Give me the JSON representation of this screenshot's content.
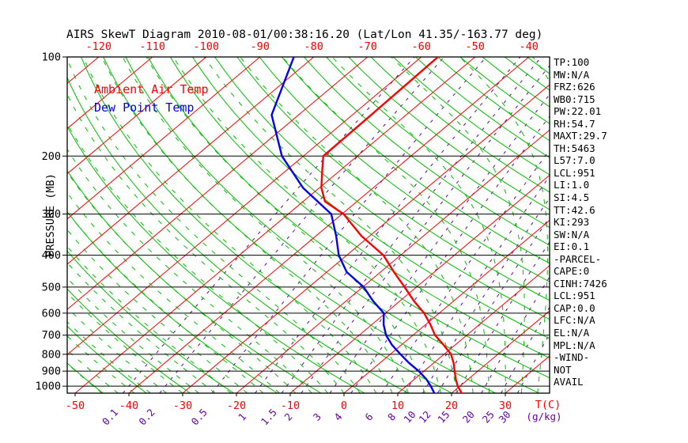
{
  "title": "AIRS SkewT Diagram 2010-08-01/00:38:16.20 (Lat/Lon 41.35/-163.77 deg)",
  "legend": {
    "temperature": "Ambient Air Temp",
    "dewpoint": "Dew Point Temp"
  },
  "stats_panel": {
    "lines": [
      "TP:100",
      "MW:N/A",
      "FRZ:626",
      "WB0:715",
      "PW:22.01",
      "RH:54.7",
      "MAXT:29.7",
      "TH:5463",
      "L57:7.0",
      "LCL:951",
      "LI:1.0",
      "SI:4.5",
      "TT:42.6",
      "KI:293",
      "SW:N/A",
      "EI:0.1",
      "-PARCEL-",
      "CAPE:0",
      "CINH:7426",
      "LCL:951",
      "CAP:0.0",
      "LFC:N/A",
      "EL:N/A",
      "MPL:N/A",
      "-WIND-",
      "NOT",
      "AVAIL"
    ]
  },
  "colors": {
    "temperature": "#ff0000",
    "dewpoint": "#0000ee",
    "isotherm": "#ff0000",
    "adiabat": "#00c000",
    "mixing_ratio": "#6600aa",
    "axis": "#000000",
    "background": "#ffffff"
  },
  "chart_data": {
    "type": "line",
    "variant": "skew-t-log-p",
    "title": "AIRS SkewT Diagram 2010-08-01/00:38:16.20 (Lat/Lon 41.35/-163.77 deg)",
    "x_axis": {
      "label": "T(C)",
      "unit": "deg C",
      "skewed": true,
      "bottom_tick_labels": [
        -50,
        -40,
        -30,
        -20,
        -10,
        0,
        10,
        20,
        30
      ],
      "top_tick_labels": [
        -120,
        -110,
        -100,
        -90,
        -80,
        -70,
        -60,
        -50,
        -40
      ]
    },
    "y_axis": {
      "label": "PRESSURE (MB)",
      "scale": "log",
      "tick_labels": [
        100,
        200,
        300,
        400,
        500,
        600,
        700,
        800,
        900,
        1000
      ],
      "range": [
        100,
        1050
      ]
    },
    "mixing_ratio_axis": {
      "label": "(g/kg)",
      "tick_labels": [
        0.1,
        0.2,
        0.5,
        1,
        1.5,
        2,
        3,
        4,
        6,
        8,
        10,
        12,
        15,
        20,
        25,
        30
      ]
    },
    "grid": {
      "isobars_mb": [
        100,
        200,
        300,
        400,
        500,
        600,
        700,
        800,
        900,
        1000
      ],
      "isotherms_c": {
        "from": -130,
        "to": 40,
        "step": 10
      },
      "dry_adiabats_theta_c": {
        "from": -56,
        "to": 192,
        "step": 8
      },
      "moist_adiabats_tw_c": {
        "from": -45,
        "to": 39,
        "step": 3
      }
    },
    "legend_position": "top-left-inside",
    "series": [
      {
        "name": "Ambient Air Temp",
        "color": "#ff0000",
        "points_p_mb_t_c": [
          [
            1050,
            21.9
          ],
          [
            1000,
            19.6
          ],
          [
            950,
            17.6
          ],
          [
            900,
            15.7
          ],
          [
            850,
            13.7
          ],
          [
            800,
            11.3
          ],
          [
            750,
            7.9
          ],
          [
            700,
            4.1
          ],
          [
            650,
            0.9
          ],
          [
            600,
            -2.8
          ],
          [
            550,
            -7.5
          ],
          [
            500,
            -12.2
          ],
          [
            450,
            -17.5
          ],
          [
            400,
            -23.2
          ],
          [
            350,
            -31.5
          ],
          [
            300,
            -39.7
          ],
          [
            275,
            -45.9
          ],
          [
            250,
            -49.6
          ],
          [
            225,
            -52.8
          ],
          [
            200,
            -56.3
          ],
          [
            150,
            -56.5
          ],
          [
            100,
            -56.9
          ]
        ]
      },
      {
        "name": "Dew Point Temp",
        "color": "#0000ee",
        "points_p_mb_t_c": [
          [
            1050,
            16.8
          ],
          [
            1000,
            14.6
          ],
          [
            950,
            12.1
          ],
          [
            900,
            9.0
          ],
          [
            850,
            5.4
          ],
          [
            800,
            1.9
          ],
          [
            750,
            -1.7
          ],
          [
            700,
            -5.0
          ],
          [
            650,
            -7.8
          ],
          [
            600,
            -10.3
          ],
          [
            550,
            -15.1
          ],
          [
            500,
            -19.8
          ],
          [
            450,
            -26.3
          ],
          [
            400,
            -31.5
          ],
          [
            350,
            -36.2
          ],
          [
            300,
            -42.0
          ],
          [
            250,
            -53.0
          ],
          [
            200,
            -64.0
          ],
          [
            150,
            -75.0
          ],
          [
            100,
            -83.7
          ]
        ]
      }
    ]
  }
}
